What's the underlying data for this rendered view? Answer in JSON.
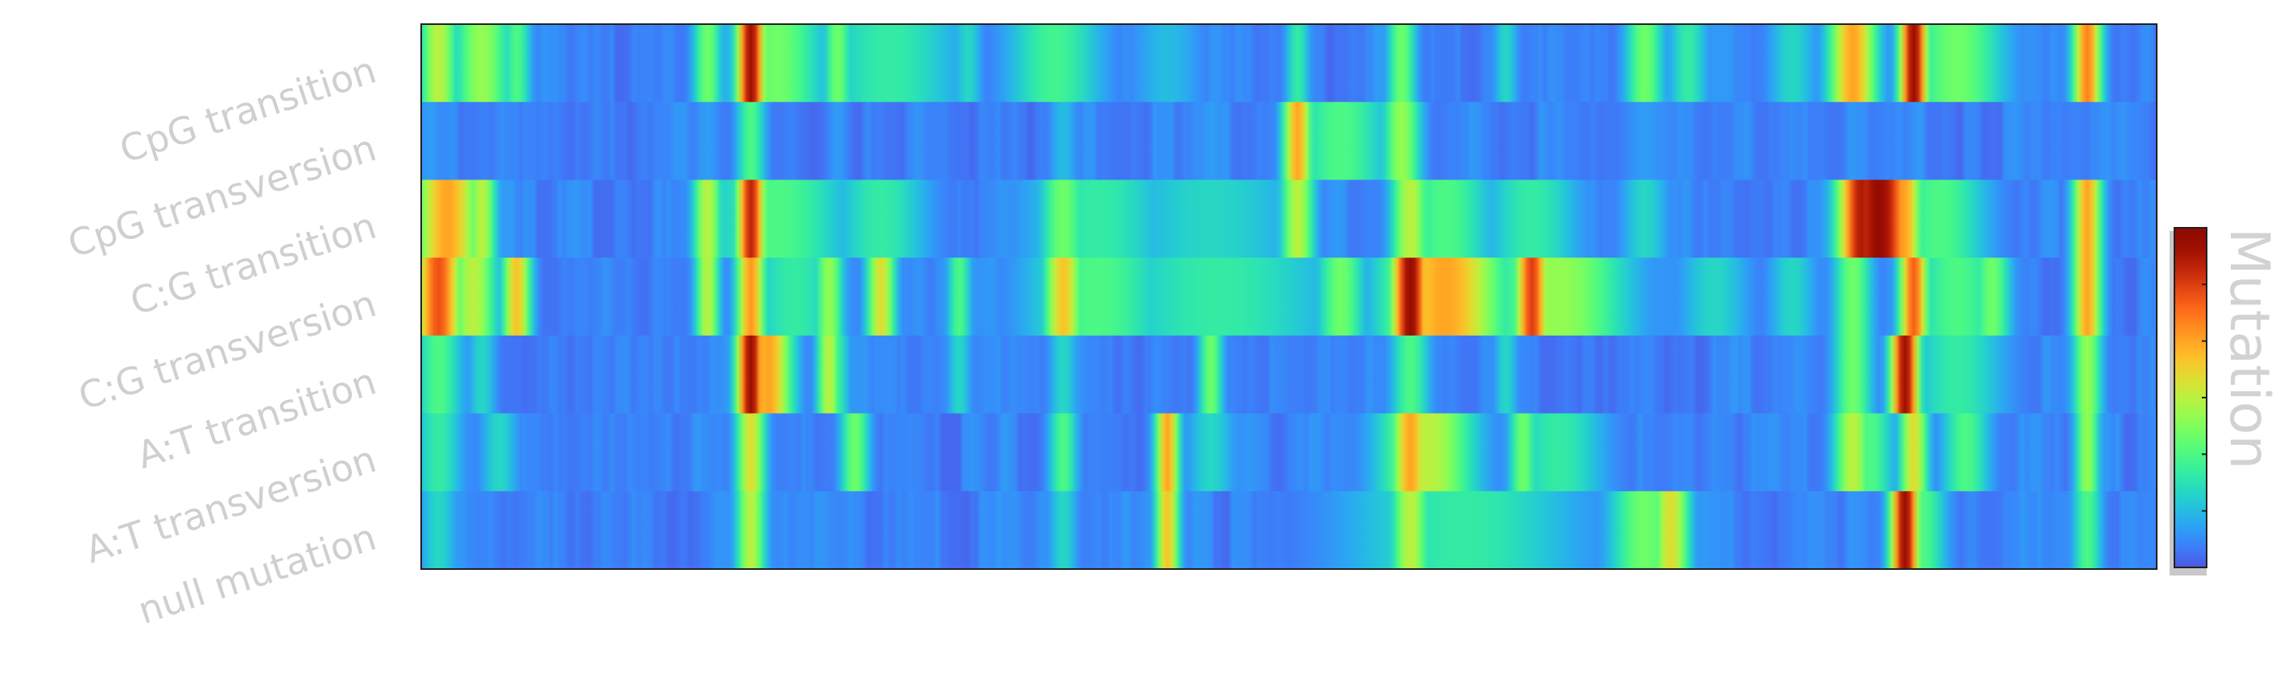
{
  "chart_data": {
    "type": "heatmap",
    "title": "",
    "xlabel": "",
    "ylabel": "",
    "rows": [
      "CpG transition",
      "CpG transversion",
      "C:G transition",
      "C:G transversion",
      "A:T transition",
      "A:T transversion",
      "null mutation"
    ],
    "colorbar": {
      "label": "Mutation",
      "colormap": "turbo",
      "range": [
        0,
        1
      ],
      "tick_labels": []
    },
    "x_range": [
      0,
      1
    ],
    "grid": false,
    "background": 0.12,
    "features": [
      [
        [
          0.01,
          0.008,
          0.55
        ],
        [
          0.035,
          0.012,
          0.5
        ],
        [
          0.055,
          0.006,
          0.4
        ],
        [
          0.165,
          0.006,
          0.45
        ],
        [
          0.19,
          0.006,
          0.95
        ],
        [
          0.205,
          0.02,
          0.45
        ],
        [
          0.24,
          0.006,
          0.45
        ],
        [
          0.27,
          0.03,
          0.35
        ],
        [
          0.315,
          0.006,
          0.3
        ],
        [
          0.365,
          0.02,
          0.38
        ],
        [
          0.43,
          0.015,
          0.25
        ],
        [
          0.505,
          0.005,
          0.35
        ],
        [
          0.565,
          0.006,
          0.45
        ],
        [
          0.625,
          0.005,
          0.3
        ],
        [
          0.705,
          0.008,
          0.45
        ],
        [
          0.73,
          0.008,
          0.35
        ],
        [
          0.79,
          0.01,
          0.3
        ],
        [
          0.825,
          0.01,
          0.7
        ],
        [
          0.86,
          0.006,
          0.96
        ],
        [
          0.885,
          0.02,
          0.45
        ],
        [
          0.96,
          0.006,
          0.75
        ]
      ],
      [
        [
          0.005,
          0.006,
          0.2
        ],
        [
          0.035,
          0.005,
          0.15
        ],
        [
          0.165,
          0.006,
          0.2
        ],
        [
          0.19,
          0.006,
          0.4
        ],
        [
          0.24,
          0.005,
          0.2
        ],
        [
          0.37,
          0.006,
          0.25
        ],
        [
          0.455,
          0.006,
          0.2
        ],
        [
          0.505,
          0.006,
          0.7
        ],
        [
          0.53,
          0.02,
          0.4
        ],
        [
          0.565,
          0.008,
          0.5
        ],
        [
          0.705,
          0.01,
          0.2
        ],
        [
          0.94,
          0.01,
          0.15
        ]
      ],
      [
        [
          0.015,
          0.014,
          0.7
        ],
        [
          0.035,
          0.006,
          0.55
        ],
        [
          0.165,
          0.006,
          0.55
        ],
        [
          0.19,
          0.006,
          0.9
        ],
        [
          0.205,
          0.03,
          0.4
        ],
        [
          0.265,
          0.02,
          0.35
        ],
        [
          0.37,
          0.01,
          0.45
        ],
        [
          0.39,
          0.03,
          0.35
        ],
        [
          0.455,
          0.04,
          0.3
        ],
        [
          0.505,
          0.007,
          0.55
        ],
        [
          0.57,
          0.008,
          0.55
        ],
        [
          0.59,
          0.02,
          0.4
        ],
        [
          0.64,
          0.02,
          0.35
        ],
        [
          0.705,
          0.01,
          0.3
        ],
        [
          0.83,
          0.01,
          0.92
        ],
        [
          0.84,
          0.015,
          0.97
        ],
        [
          0.855,
          0.007,
          0.7
        ],
        [
          0.875,
          0.02,
          0.4
        ],
        [
          0.96,
          0.006,
          0.7
        ]
      ],
      [
        [
          0.01,
          0.01,
          0.82
        ],
        [
          0.03,
          0.01,
          0.55
        ],
        [
          0.055,
          0.006,
          0.65
        ],
        [
          0.165,
          0.005,
          0.55
        ],
        [
          0.19,
          0.006,
          0.72
        ],
        [
          0.215,
          0.02,
          0.35
        ],
        [
          0.235,
          0.006,
          0.5
        ],
        [
          0.265,
          0.006,
          0.6
        ],
        [
          0.31,
          0.005,
          0.4
        ],
        [
          0.37,
          0.008,
          0.65
        ],
        [
          0.39,
          0.03,
          0.4
        ],
        [
          0.46,
          0.05,
          0.35
        ],
        [
          0.53,
          0.01,
          0.45
        ],
        [
          0.57,
          0.008,
          0.97
        ],
        [
          0.59,
          0.025,
          0.7
        ],
        [
          0.64,
          0.007,
          0.85
        ],
        [
          0.655,
          0.03,
          0.5
        ],
        [
          0.745,
          0.015,
          0.3
        ],
        [
          0.79,
          0.01,
          0.3
        ],
        [
          0.825,
          0.008,
          0.45
        ],
        [
          0.86,
          0.006,
          0.8
        ],
        [
          0.885,
          0.02,
          0.4
        ],
        [
          0.905,
          0.008,
          0.45
        ],
        [
          0.96,
          0.006,
          0.7
        ]
      ],
      [
        [
          0.01,
          0.01,
          0.4
        ],
        [
          0.035,
          0.006,
          0.3
        ],
        [
          0.19,
          0.006,
          0.96
        ],
        [
          0.2,
          0.01,
          0.7
        ],
        [
          0.235,
          0.005,
          0.55
        ],
        [
          0.24,
          0.005,
          0.35
        ],
        [
          0.31,
          0.005,
          0.3
        ],
        [
          0.37,
          0.006,
          0.3
        ],
        [
          0.455,
          0.005,
          0.45
        ],
        [
          0.57,
          0.008,
          0.4
        ],
        [
          0.625,
          0.005,
          0.3
        ],
        [
          0.825,
          0.008,
          0.45
        ],
        [
          0.855,
          0.006,
          0.95
        ],
        [
          0.885,
          0.02,
          0.35
        ],
        [
          0.96,
          0.006,
          0.5
        ]
      ],
      [
        [
          0.01,
          0.01,
          0.35
        ],
        [
          0.045,
          0.008,
          0.3
        ],
        [
          0.19,
          0.006,
          0.6
        ],
        [
          0.25,
          0.006,
          0.45
        ],
        [
          0.37,
          0.006,
          0.4
        ],
        [
          0.43,
          0.005,
          0.7
        ],
        [
          0.455,
          0.01,
          0.3
        ],
        [
          0.57,
          0.008,
          0.7
        ],
        [
          0.58,
          0.02,
          0.55
        ],
        [
          0.635,
          0.006,
          0.45
        ],
        [
          0.655,
          0.02,
          0.35
        ],
        [
          0.825,
          0.008,
          0.55
        ],
        [
          0.835,
          0.01,
          0.4
        ],
        [
          0.86,
          0.006,
          0.6
        ],
        [
          0.89,
          0.01,
          0.4
        ],
        [
          0.96,
          0.005,
          0.5
        ]
      ],
      [
        [
          0.01,
          0.008,
          0.3
        ],
        [
          0.19,
          0.006,
          0.55
        ],
        [
          0.37,
          0.006,
          0.3
        ],
        [
          0.43,
          0.005,
          0.65
        ],
        [
          0.57,
          0.008,
          0.55
        ],
        [
          0.6,
          0.05,
          0.35
        ],
        [
          0.705,
          0.015,
          0.45
        ],
        [
          0.72,
          0.008,
          0.6
        ],
        [
          0.855,
          0.006,
          0.96
        ],
        [
          0.865,
          0.01,
          0.4
        ],
        [
          0.96,
          0.006,
          0.4
        ]
      ]
    ]
  }
}
